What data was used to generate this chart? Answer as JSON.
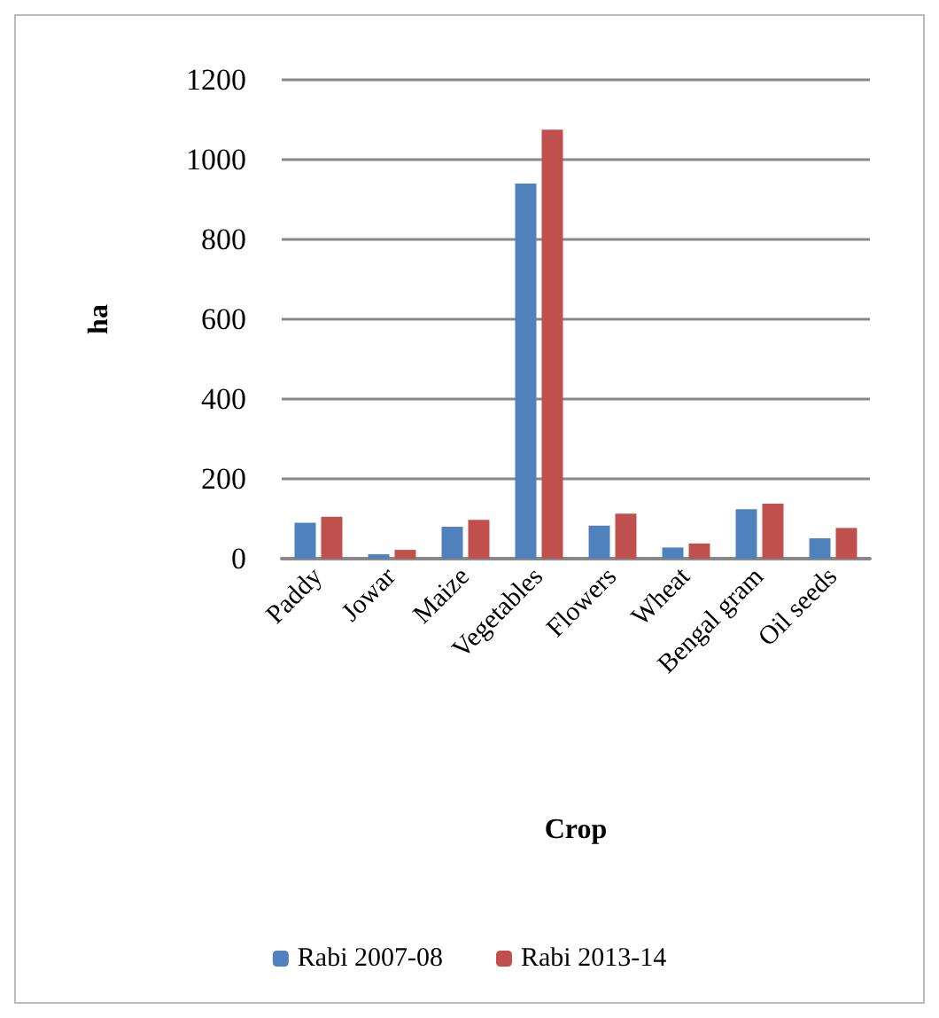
{
  "chart_data": {
    "type": "bar",
    "xlabel": "Crop",
    "ylabel": "ha",
    "categories": [
      "Paddy",
      "Jowar",
      "Maize",
      "Vegetables",
      "Flowers",
      "Wheat",
      "Bengal gram",
      "Oil seeds"
    ],
    "series": [
      {
        "name": "Rabi 2007-08",
        "color": "#4f81bd",
        "values": [
          90,
          11,
          80,
          940,
          83,
          28,
          124,
          51
        ]
      },
      {
        "name": "Rabi 2013-14",
        "color": "#c0504d",
        "values": [
          105,
          22,
          97,
          1075,
          113,
          38,
          138,
          77
        ]
      }
    ],
    "ylim": [
      0,
      1200
    ],
    "yticks": [
      0,
      200,
      400,
      600,
      800,
      1000,
      1200
    ],
    "grid": "y",
    "legend": "bottom"
  }
}
